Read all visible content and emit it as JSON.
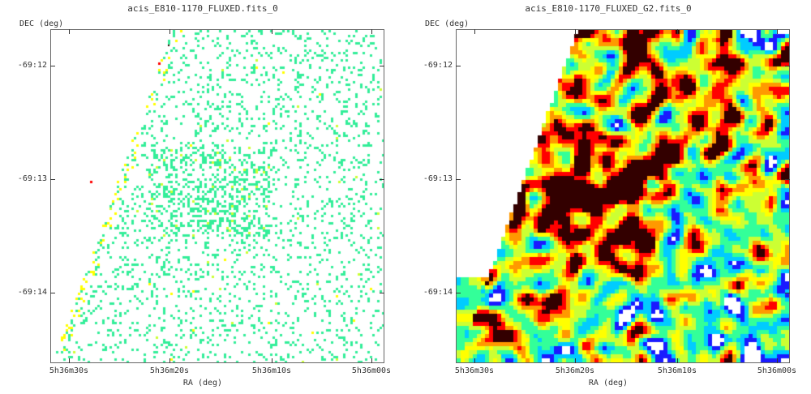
{
  "panels": [
    {
      "title": "acis_E810-1170_FLUXED.fits_0",
      "ylabel": "DEC (deg)",
      "xlabel": "RA (deg)",
      "render_style": "sparse-pixels",
      "y_ticks": [
        "-69:12",
        "-69:13",
        "-69:14"
      ],
      "x_ticks": [
        "5h36m30s",
        "5h36m20s",
        "5h36m10s",
        "5h36m00s"
      ]
    },
    {
      "title": "acis_E810-1170_FLUXED_G2.fits_0",
      "ylabel": "DEC (deg)",
      "xlabel": "RA (deg)",
      "render_style": "smoothed-contours",
      "y_ticks": [
        "-69:12",
        "-69:13",
        "-69:14"
      ],
      "x_ticks": [
        "5h36m30s",
        "5h36m20s",
        "5h36m10s",
        "5h36m00s"
      ]
    }
  ],
  "colormap": [
    "#ffffff",
    "#1a1aff",
    "#00ccff",
    "#33ff99",
    "#ccff33",
    "#ffff00",
    "#ff9900",
    "#ff0000",
    "#330000"
  ]
}
